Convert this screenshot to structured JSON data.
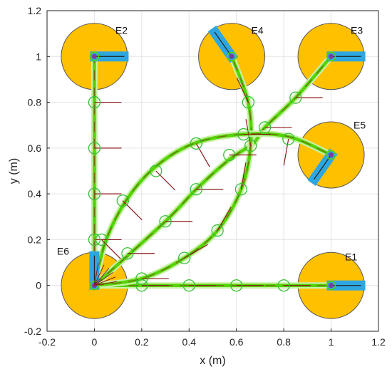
{
  "chart_data": {
    "type": "scatter",
    "xlabel": "x (m)",
    "ylabel": "y (m)",
    "xlim": [
      -0.2,
      1.2
    ],
    "ylim": [
      -0.2,
      1.2
    ],
    "xticks": [
      "-0.2",
      "0",
      "0.2",
      "0.4",
      "0.6",
      "0.8",
      "1",
      "1.2"
    ],
    "yticks": [
      "-0.2",
      "0",
      "0.2",
      "0.4",
      "0.6",
      "0.8",
      "1",
      "1.2"
    ],
    "xtick_values": [
      -0.2,
      0,
      0.2,
      0.4,
      0.6,
      0.8,
      1.0,
      1.2
    ],
    "ytick_values": [
      -0.2,
      0,
      0.2,
      0.4,
      0.6,
      0.8,
      1.0,
      1.2
    ],
    "grid": true,
    "station_radius": 0.14,
    "stations": [
      {
        "label": "E1",
        "x": 1.0,
        "y": 0.0,
        "heading_deg": 0
      },
      {
        "label": "E2",
        "x": 0.0,
        "y": 1.0,
        "heading_deg": 0
      },
      {
        "label": "E3",
        "x": 1.0,
        "y": 1.0,
        "heading_deg": 0
      },
      {
        "label": "E4",
        "x": 0.58,
        "y": 1.0,
        "heading_deg": 125
      },
      {
        "label": "E5",
        "x": 1.0,
        "y": 0.57,
        "heading_deg": 235
      },
      {
        "label": "E6",
        "x": 0.0,
        "y": 0.0,
        "heading_deg": 90
      }
    ],
    "paths": [
      {
        "to": "E1",
        "points": [
          [
            0,
            0
          ],
          [
            0.2,
            0.0
          ],
          [
            0.4,
            0.0
          ],
          [
            0.6,
            0.0
          ],
          [
            0.8,
            0.0
          ],
          [
            1.0,
            0.0
          ]
        ]
      },
      {
        "to": "E2",
        "points": [
          [
            0,
            0
          ],
          [
            0,
            0.2
          ],
          [
            0,
            0.4
          ],
          [
            0,
            0.6
          ],
          [
            0,
            0.8
          ],
          [
            0,
            1.0
          ]
        ]
      },
      {
        "to": "E3",
        "points": [
          [
            0,
            0
          ],
          [
            0.3,
            0.28
          ],
          [
            0.43,
            0.42
          ],
          [
            0.57,
            0.55
          ],
          [
            0.67,
            0.62
          ],
          [
            0.72,
            0.69
          ],
          [
            0.85,
            0.82
          ],
          [
            1.0,
            1.0
          ]
        ]
      },
      {
        "to": "E4",
        "points": [
          [
            0,
            0
          ],
          [
            0.2,
            0.03
          ],
          [
            0.38,
            0.12
          ],
          [
            0.52,
            0.24
          ],
          [
            0.62,
            0.42
          ],
          [
            0.66,
            0.61
          ],
          [
            0.65,
            0.8
          ],
          [
            0.58,
            1.0
          ]
        ]
      },
      {
        "to": "E5",
        "points": [
          [
            0,
            0
          ],
          [
            0.05,
            0.2
          ],
          [
            0.14,
            0.38
          ],
          [
            0.26,
            0.52
          ],
          [
            0.42,
            0.62
          ],
          [
            0.62,
            0.66
          ],
          [
            0.82,
            0.65
          ],
          [
            1.0,
            0.57
          ]
        ]
      }
    ],
    "waypoints": [
      {
        "x": 0.2,
        "y": 0.0,
        "heading_deg": 0
      },
      {
        "x": 0.4,
        "y": 0.0,
        "heading_deg": 0
      },
      {
        "x": 0.6,
        "y": 0.0,
        "heading_deg": 0
      },
      {
        "x": 0.8,
        "y": 0.0,
        "heading_deg": 0
      },
      {
        "x": 0.0,
        "y": 0.2,
        "heading_deg": 0
      },
      {
        "x": 0.0,
        "y": 0.4,
        "heading_deg": 0
      },
      {
        "x": 0.0,
        "y": 0.6,
        "heading_deg": 0
      },
      {
        "x": 0.0,
        "y": 0.8,
        "heading_deg": 0
      },
      {
        "x": 0.03,
        "y": 0.2,
        "heading_deg": -45
      },
      {
        "x": 0.14,
        "y": 0.14,
        "heading_deg": 0
      },
      {
        "x": 0.2,
        "y": 0.03,
        "heading_deg": 0
      },
      {
        "x": 0.38,
        "y": 0.12,
        "heading_deg": 30
      },
      {
        "x": 0.52,
        "y": 0.24,
        "heading_deg": 60
      },
      {
        "x": 0.62,
        "y": 0.42,
        "heading_deg": 80
      },
      {
        "x": 0.66,
        "y": 0.61,
        "heading_deg": 100
      },
      {
        "x": 0.65,
        "y": 0.8,
        "heading_deg": 115
      },
      {
        "x": 0.12,
        "y": 0.37,
        "heading_deg": -45
      },
      {
        "x": 0.26,
        "y": 0.5,
        "heading_deg": -45
      },
      {
        "x": 0.43,
        "y": 0.62,
        "heading_deg": -60
      },
      {
        "x": 0.57,
        "y": 0.57,
        "heading_deg": 0
      },
      {
        "x": 0.63,
        "y": 0.66,
        "heading_deg": 0
      },
      {
        "x": 0.82,
        "y": 0.64,
        "heading_deg": -100
      },
      {
        "x": 0.3,
        "y": 0.28,
        "heading_deg": 0
      },
      {
        "x": 0.43,
        "y": 0.42,
        "heading_deg": 0
      },
      {
        "x": 0.72,
        "y": 0.69,
        "heading_deg": 0
      },
      {
        "x": 0.85,
        "y": 0.82,
        "heading_deg": 0
      }
    ],
    "colors": {
      "station_fill": "#FFC000",
      "station_stroke": "#555555",
      "robot_bar": "#2EA7E0",
      "path": "#55D400",
      "path_shadow": "#C8F0A8",
      "path_core": "#7A4A1A",
      "waypoint": "#33C233",
      "heading_line": "#8B1A1A",
      "grid": "#E3E3E3",
      "axis": "#222222"
    }
  }
}
